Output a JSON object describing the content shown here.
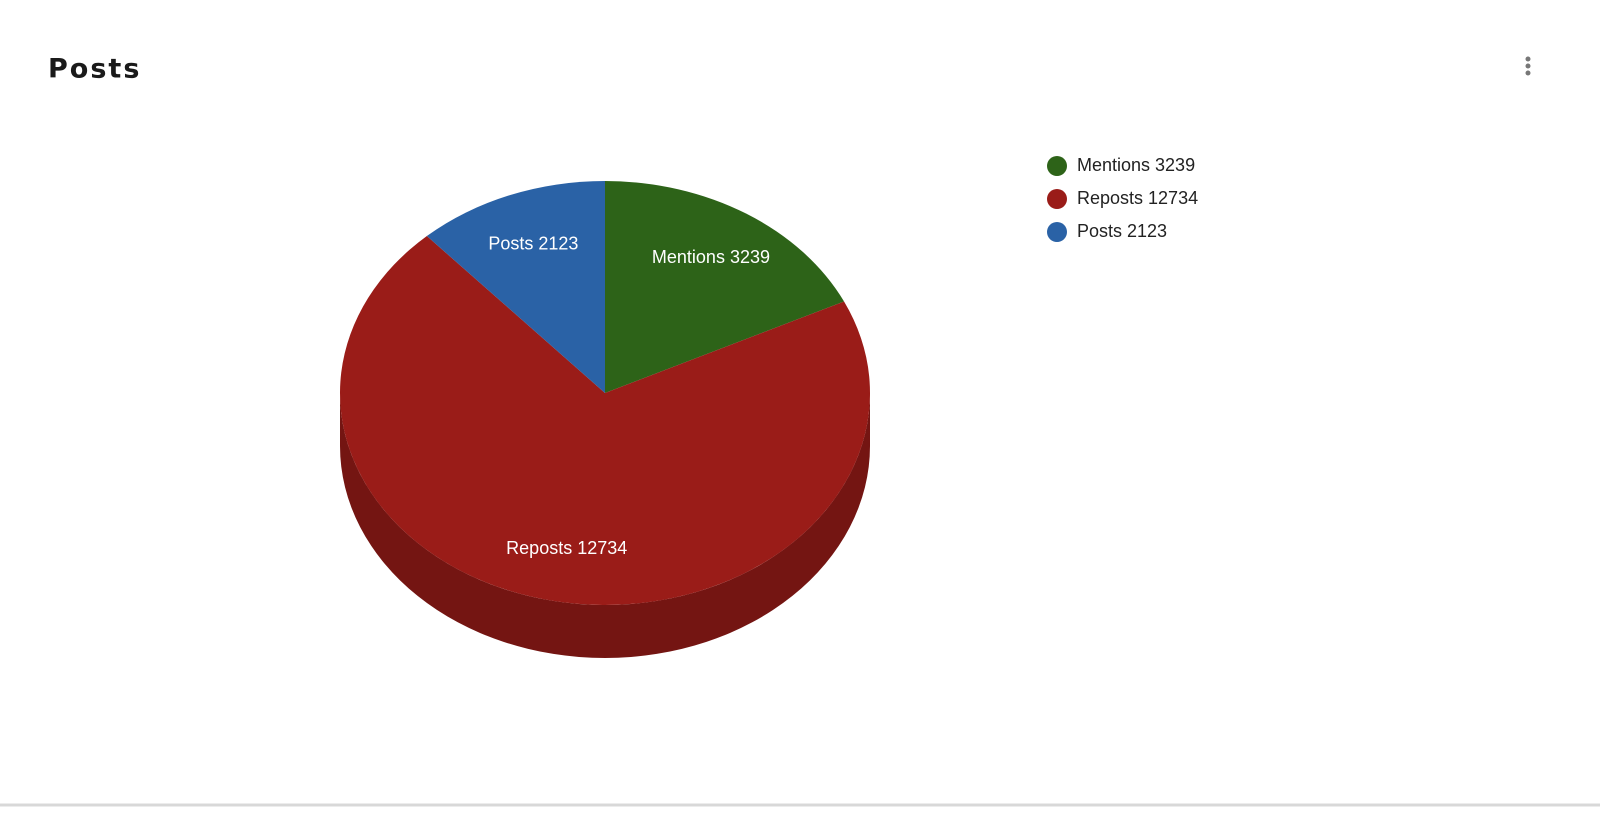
{
  "chart_data": {
    "type": "pie",
    "title": "Posts",
    "categories": [
      "Mentions 3239",
      "Reposts 12734",
      "Posts 2123"
    ],
    "values": [
      3239,
      12734,
      2123
    ],
    "value_labels": [
      "Mentions 3239",
      "Reposts 12734",
      "Posts 2123"
    ],
    "colors": [
      "#2d6318",
      "#9a1c18",
      "#2a62a6"
    ],
    "legend": "right"
  }
}
